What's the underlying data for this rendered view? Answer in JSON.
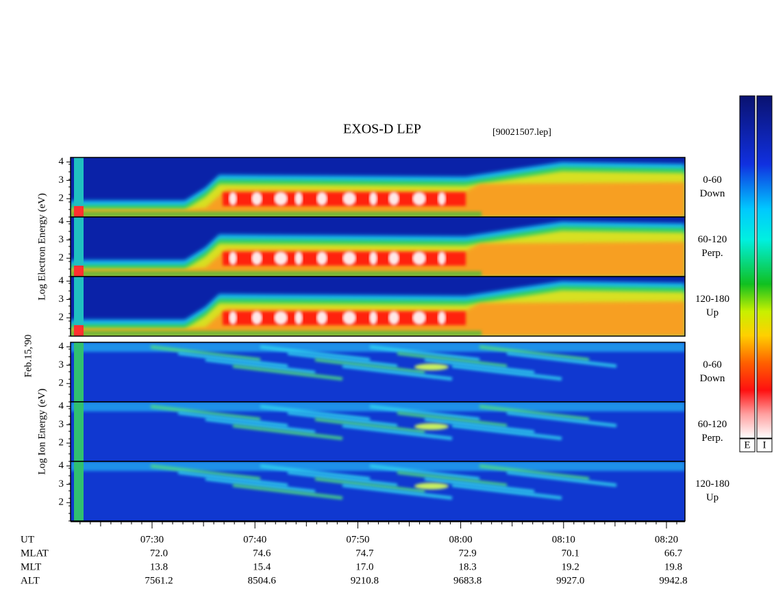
{
  "title": "EXOS-D LEP",
  "file": "[90021507.lep]",
  "date": "Feb.15,'90",
  "yticks": [
    2,
    3,
    4
  ],
  "ylim": [
    1,
    4.25
  ],
  "groups": [
    {
      "label": "Log Electron Energy (eV)",
      "kind": "electron",
      "panels": [
        {
          "angle": "0-60",
          "dir": "Down"
        },
        {
          "angle": "60-120",
          "dir": "Perp."
        },
        {
          "angle": "120-180",
          "dir": "Up"
        }
      ]
    },
    {
      "label": "Log Ion Energy (eV)",
      "kind": "ion",
      "panels": [
        {
          "angle": "0-60",
          "dir": "Down"
        },
        {
          "angle": "60-120",
          "dir": "Perp."
        },
        {
          "angle": "120-180",
          "dir": "Up"
        }
      ]
    }
  ],
  "table": {
    "rows": [
      {
        "name": "UT",
        "values": [
          "07:30",
          "07:40",
          "07:50",
          "08:00",
          "08:10",
          "08:20"
        ]
      },
      {
        "name": "MLAT",
        "values": [
          "72.0",
          "74.6",
          "74.7",
          "72.9",
          "70.1",
          "66.7"
        ]
      },
      {
        "name": "MLT",
        "values": [
          "13.8",
          "15.4",
          "17.0",
          "18.3",
          "19.2",
          "19.8"
        ]
      },
      {
        "name": "ALT",
        "values": [
          "7561.2",
          "8504.6",
          "9210.8",
          "9683.8",
          "9927.0",
          "9942.8"
        ]
      }
    ]
  },
  "colorbar": [
    "E",
    "I"
  ]
}
